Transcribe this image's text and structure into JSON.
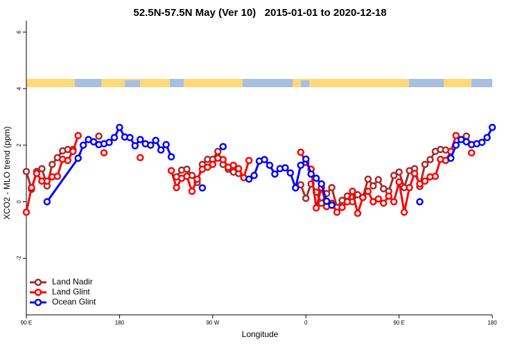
{
  "chart_data": {
    "type": "line",
    "title": "52.5N-57.5N May (Ver 10)   2015-01-01 to 2020-12-18",
    "xlabel": "Longitude",
    "ylabel": "XCO2 - MLO trend (ppm)",
    "xlim": [
      90,
      540
    ],
    "xticks": [
      {
        "value": 90,
        "label": "90 E"
      },
      180,
      {
        "value": 270,
        "label": "90 W"
      },
      {
        "value": 360,
        "label": "0"
      },
      {
        "value": 450,
        "label": "90 E"
      },
      {
        "value": 540,
        "label": "180"
      }
    ],
    "ylim": [
      -4,
      6.4
    ],
    "yticks": [
      -2,
      0,
      2,
      4,
      6
    ],
    "legend": "bottom-left",
    "x": [
      90,
      95,
      100,
      105,
      110,
      115,
      120,
      125,
      130,
      135,
      140,
      145,
      150,
      155,
      160,
      165,
      170,
      175,
      180,
      185,
      190,
      195,
      200,
      205,
      210,
      215,
      220,
      225,
      230,
      235,
      240,
      245,
      250,
      255,
      260,
      265,
      270,
      275,
      280,
      285,
      290,
      295,
      300,
      305,
      310,
      315,
      320,
      325,
      330,
      335,
      340,
      345,
      350,
      355,
      360,
      365,
      370,
      375,
      380,
      385,
      390,
      395,
      400,
      405,
      410,
      415,
      420,
      425,
      430,
      435,
      440,
      445,
      450,
      455,
      460,
      465,
      470,
      475,
      480,
      485,
      490,
      495,
      500,
      505,
      510,
      515,
      520,
      525,
      530,
      535,
      540
    ],
    "series": [
      {
        "name": "Land Nadir",
        "color": "#a52a2a",
        "values": [
          1.07,
          0.44,
          1.07,
          1.17,
          0.56,
          1.32,
          1.56,
          1.8,
          1.85,
          1.85,
          null,
          null,
          null,
          null,
          2.32,
          null,
          null,
          null,
          null,
          null,
          null,
          null,
          null,
          null,
          null,
          null,
          null,
          null,
          null,
          0.88,
          1.12,
          1.15,
          0.93,
          0.68,
          1.32,
          1.5,
          1.5,
          1.78,
          1.32,
          1.15,
          1.05,
          1.0,
          null,
          null,
          null,
          null,
          null,
          null,
          null,
          null,
          null,
          null,
          null,
          0.6,
          0.12,
          0.63,
          0.34,
          -0.05,
          0.29,
          0.5,
          -0.2,
          0.05,
          0.2,
          0.0,
          0.25,
          0.15,
          0.8,
          0.56,
          0.78,
          0.46,
          0.37,
          0.93,
          1.05,
          0.5,
          1.1,
          1.17,
          0.54,
          1.32,
          1.49,
          1.78,
          1.85,
          1.83,
          null,
          null,
          null,
          2.32,
          null,
          null,
          null,
          null,
          null
        ]
      },
      {
        "name": "Land Glint",
        "color": "#ff0000",
        "values": [
          -0.37,
          0.5,
          1.0,
          0.73,
          0.73,
          0.88,
          0.9,
          1.5,
          1.46,
          1.78,
          2.34,
          null,
          null,
          null,
          null,
          1.73,
          null,
          null,
          null,
          null,
          null,
          null,
          1.56,
          null,
          null,
          null,
          null,
          null,
          1.1,
          0.5,
          0.83,
          0.9,
          0.37,
          0.8,
          1.15,
          1.22,
          1.32,
          1.54,
          1.49,
          1.22,
          1.29,
          1.17,
          0.85,
          1.46,
          null,
          null,
          null,
          null,
          null,
          null,
          null,
          null,
          null,
          1.75,
          1.39,
          1.15,
          -0.22,
          0.5,
          -0.17,
          -0.05,
          -0.37,
          -0.2,
          0.0,
          0.37,
          -0.41,
          0.15,
          0.37,
          0.0,
          0.1,
          -0.05,
          0.2,
          0.0,
          0.7,
          -0.37,
          0.5,
          1.0,
          0.63,
          0.73,
          0.88,
          0.9,
          1.5,
          1.46,
          1.78,
          2.34,
          null,
          null,
          1.73,
          null,
          null,
          null,
          null
        ]
      },
      {
        "name": "Ocean Glint",
        "color": "#0000ff",
        "x": [
          110,
          140,
          145,
          150,
          155,
          160,
          165,
          170,
          175,
          180,
          185,
          190,
          195,
          200,
          205,
          210,
          215,
          220,
          225,
          230,
          null,
          260,
          null,
          280,
          null,
          305,
          310,
          315,
          320,
          325,
          330,
          335,
          340,
          345,
          350,
          355,
          360,
          365,
          370,
          375,
          380,
          385,
          null,
          470,
          null,
          500,
          505,
          510,
          515,
          520,
          525,
          530,
          535,
          540
        ],
        "values": [
          0.0,
          1.54,
          2.0,
          2.2,
          2.12,
          2.02,
          2.05,
          2.1,
          2.27,
          2.63,
          2.29,
          2.27,
          1.98,
          2.2,
          2.05,
          2.0,
          2.17,
          1.83,
          2.02,
          1.59,
          null,
          0.49,
          null,
          1.95,
          null,
          0.8,
          0.93,
          1.44,
          1.49,
          1.29,
          0.98,
          1.17,
          1.2,
          1.02,
          0.49,
          1.29,
          1.51,
          0.98,
          0.83,
          0.63,
          0.02,
          -0.12,
          null,
          0.0,
          null,
          1.54,
          2.0,
          2.2,
          2.12,
          2.02,
          2.05,
          2.1,
          2.27,
          2.63
        ]
      }
    ]
  }
}
